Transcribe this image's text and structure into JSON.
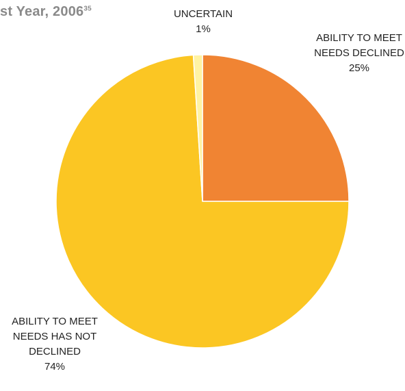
{
  "title": {
    "text": "st Year, 2006",
    "sup": "35"
  },
  "chart_data": {
    "type": "pie",
    "slices": [
      {
        "label": [
          "ABILITY TO MEET",
          "NEEDS DECLINED"
        ],
        "value": 25,
        "value_label": "25%",
        "color": "#f08433"
      },
      {
        "label": [
          "ABILITY TO MEET",
          "NEEDS HAS NOT",
          "DECLINED"
        ],
        "value": 74,
        "value_label": "74%",
        "color": "#fbc623"
      },
      {
        "label": [
          "UNCERTAIN"
        ],
        "value": 1,
        "value_label": "1%",
        "color": "#fff3a3"
      }
    ]
  }
}
